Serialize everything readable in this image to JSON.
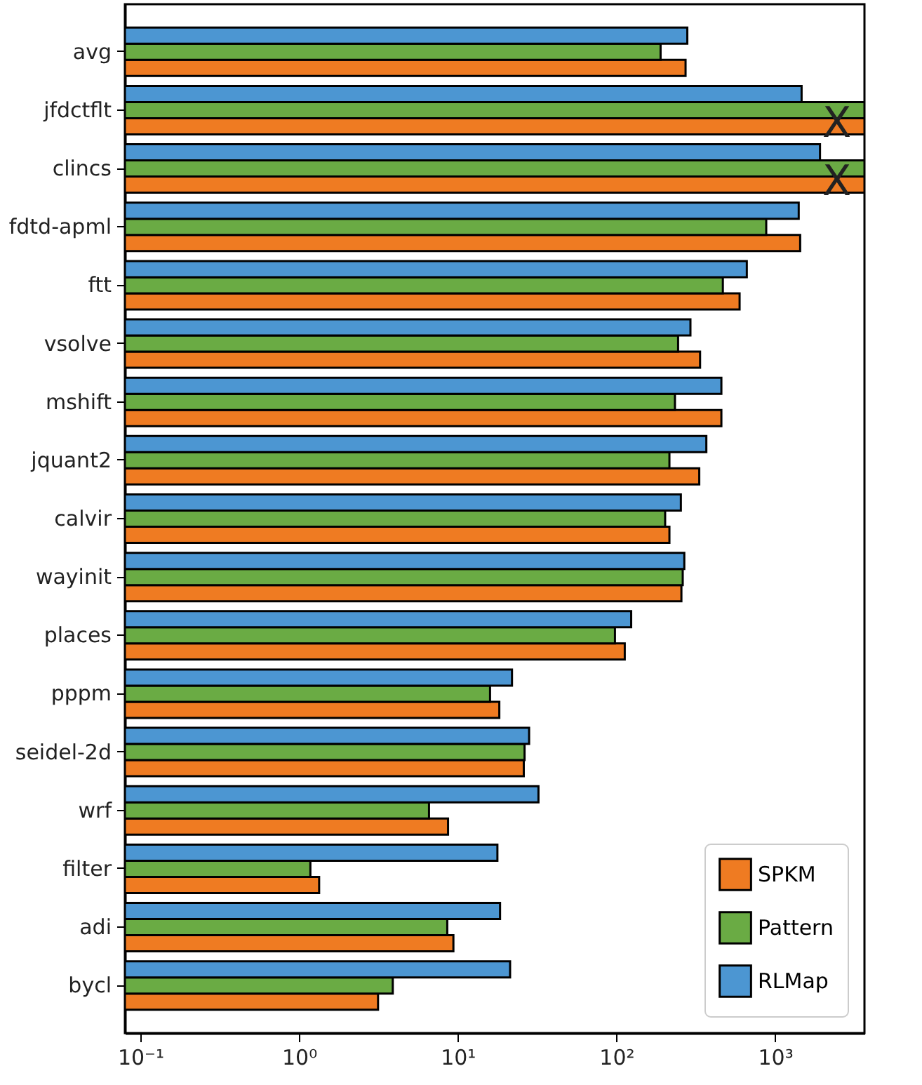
{
  "chart_data": {
    "type": "bar",
    "orientation": "horizontal",
    "log": "x",
    "categories": [
      "avg",
      "jfdctflt",
      "clincs",
      "fdtd-apml",
      "ftt",
      "vsolve",
      "mshift",
      "jquant2",
      "calvir",
      "wayinit",
      "places",
      "pppm",
      "seidel-2d",
      "wrf",
      "filter",
      "adi",
      "bycl"
    ],
    "series": [
      {
        "name": "SPKM",
        "color": "#ef7b22",
        "values": [
          273,
          3660,
          3660,
          1440,
          598,
          337,
          459,
          333,
          216,
          257,
          113,
          18.3,
          26.1,
          8.7,
          1.34,
          9.4,
          3.15
        ]
      },
      {
        "name": "Pattern",
        "color": "#6aab44",
        "values": [
          190,
          3660,
          3660,
          880,
          469,
          245,
          234,
          216,
          203,
          262,
          98,
          16.0,
          26.4,
          6.6,
          1.18,
          8.6,
          3.9
        ]
      },
      {
        "name": "RLMap",
        "color": "#4c96d2",
        "values": [
          280,
          1470,
          1920,
          1410,
          664,
          293,
          459,
          369,
          255,
          268,
          124,
          22.0,
          28.2,
          32.3,
          17.8,
          18.5,
          21.4
        ]
      }
    ],
    "xlim": [
      0.08,
      3660
    ],
    "xticks": [
      {
        "value": 0.1,
        "label": "10⁻¹"
      },
      {
        "value": 1,
        "label": "10⁰"
      },
      {
        "value": 10,
        "label": "10¹"
      },
      {
        "value": 100,
        "label": "10²"
      },
      {
        "value": 1000,
        "label": "10³"
      }
    ],
    "annotations": [
      {
        "text": "X",
        "x": 2450,
        "y": "jfdctflt"
      },
      {
        "text": "X",
        "x": 2450,
        "y": "clincs"
      }
    ],
    "legend": "bottom right",
    "grid": false
  }
}
